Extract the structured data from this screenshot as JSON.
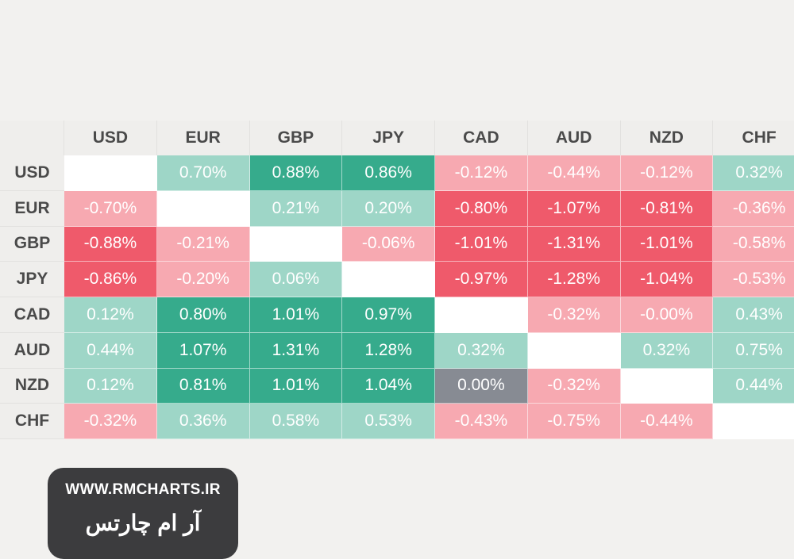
{
  "chart_data": {
    "type": "heatmap",
    "title": "",
    "columns": [
      "USD",
      "EUR",
      "GBP",
      "JPY",
      "CAD",
      "AUD",
      "NZD",
      "CHF"
    ],
    "rows": [
      "USD",
      "EUR",
      "GBP",
      "JPY",
      "CAD",
      "AUD",
      "NZD",
      "CHF"
    ],
    "values": [
      [
        null,
        "0.70%",
        "0.88%",
        "0.86%",
        "-0.12%",
        "-0.44%",
        "-0.12%",
        "0.32%"
      ],
      [
        "-0.70%",
        null,
        "0.21%",
        "0.20%",
        "-0.80%",
        "-1.07%",
        "-0.81%",
        "-0.36%"
      ],
      [
        "-0.88%",
        "-0.21%",
        null,
        "-0.06%",
        "-1.01%",
        "-1.31%",
        "-1.01%",
        "-0.58%"
      ],
      [
        "-0.86%",
        "-0.20%",
        "0.06%",
        null,
        "-0.97%",
        "-1.28%",
        "-1.04%",
        "-0.53%"
      ],
      [
        "0.12%",
        "0.80%",
        "1.01%",
        "0.97%",
        null,
        "-0.32%",
        "-0.00%",
        "0.43%"
      ],
      [
        "0.44%",
        "1.07%",
        "1.31%",
        "1.28%",
        "0.32%",
        null,
        "0.32%",
        "0.75%"
      ],
      [
        "0.12%",
        "0.81%",
        "1.01%",
        "1.04%",
        "0.00%",
        "-0.32%",
        null,
        "0.44%"
      ],
      [
        "-0.32%",
        "0.36%",
        "0.58%",
        "0.53%",
        "-0.43%",
        "-0.75%",
        "-0.44%",
        null
      ]
    ],
    "colors": {
      "positive_light": "#9ed6c7",
      "positive_strong": "#36ab8c",
      "negative_light": "#f7a9b1",
      "negative_strong": "#ef5a6b",
      "neutral": "#878b93",
      "empty": "#ffffff"
    },
    "threshold": 0.75
  },
  "watermark": {
    "url": "WWW.RMCHARTS.IR",
    "name": "آر ام چارتس"
  }
}
